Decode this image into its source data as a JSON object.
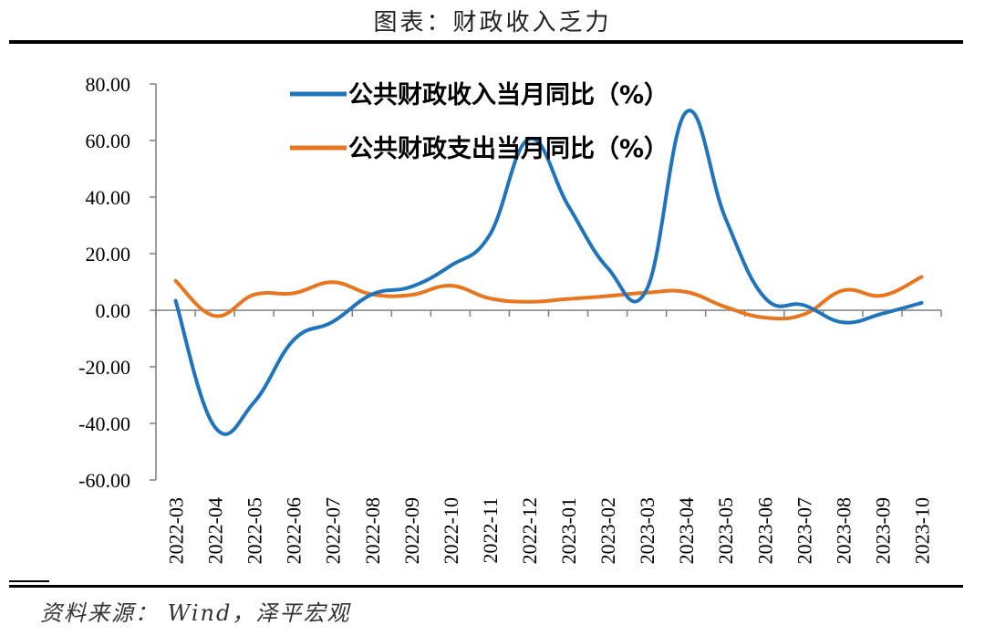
{
  "figure": {
    "title": "图表：财政收入乏力",
    "source": "资料来源： Wind，泽平宏观"
  },
  "chart_data": {
    "type": "line",
    "categories": [
      "2022-03",
      "2022-04",
      "2022-05",
      "2022-06",
      "2022-07",
      "2022-08",
      "2022-09",
      "2022-10",
      "2022-11",
      "2022-12",
      "2023-01",
      "2023-02",
      "2023-03",
      "2023-04",
      "2023-05",
      "2023-06",
      "2023-07",
      "2023-08",
      "2023-09",
      "2023-10"
    ],
    "ylim": [
      -60,
      80
    ],
    "yticks": [
      "80.00",
      "60.00",
      "40.00",
      "20.00",
      "0.00",
      "-20.00",
      "-40.00",
      "-60.00"
    ],
    "ytick_values": [
      80,
      60,
      40,
      20,
      0,
      -20,
      -40,
      -60
    ],
    "series": [
      {
        "name": "公共财政收入当月同比（%）",
        "color": "#1F74BE",
        "values": [
          3.4,
          -41.3,
          -32.5,
          -10.6,
          -4.1,
          5.6,
          8.3,
          15.7,
          26.6,
          60.5,
          37.0,
          15.0,
          7.4,
          70.0,
          32.7,
          4.5,
          1.8,
          -4.3,
          -1.2,
          2.6
        ]
      },
      {
        "name": "公共财政支出当月同比（%）",
        "color": "#E8761E",
        "values": [
          10.4,
          -2.0,
          5.5,
          6.0,
          9.9,
          5.6,
          5.4,
          8.7,
          4.2,
          3.0,
          4.0,
          5.0,
          6.2,
          6.5,
          1.2,
          -2.6,
          -1.5,
          7.0,
          5.2,
          11.8
        ]
      }
    ],
    "legend": "top-center",
    "grid": false
  }
}
